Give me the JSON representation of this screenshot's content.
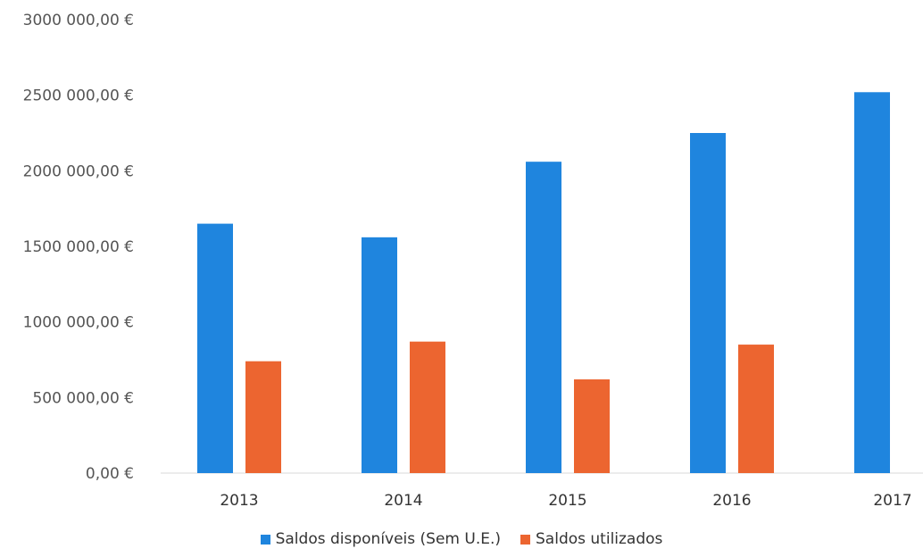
{
  "chart_data": {
    "type": "bar",
    "categories": [
      "2013",
      "2014",
      "2015",
      "2016",
      "2017"
    ],
    "series": [
      {
        "name": "Saldos disponíveis (Sem U.E.)",
        "values": [
          1650000,
          1560000,
          2060000,
          2250000,
          2520000
        ],
        "color": "#1f85de"
      },
      {
        "name": "Saldos utilizados",
        "values": [
          740000,
          870000,
          620000,
          850000,
          null
        ],
        "color": "#ec6530"
      }
    ],
    "ylim": [
      0,
      3000000
    ],
    "yticks": [
      "0,00 €",
      "500 000,00 €",
      "1000 000,00 €",
      "1500 000,00 €",
      "2000 000,00 €",
      "2500 000,00 €",
      "3000 000,00 €"
    ],
    "grid": false,
    "legend": "bottom"
  }
}
